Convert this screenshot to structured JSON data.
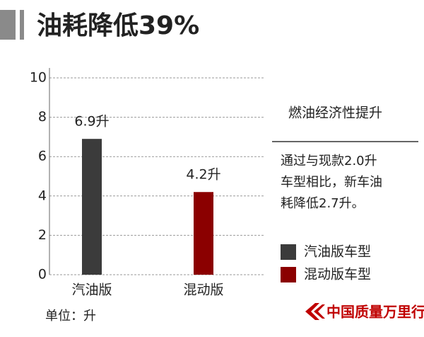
{
  "chart_data": {
    "type": "bar",
    "title": "油耗降低39%",
    "categories": [
      "汽油版",
      "混动版"
    ],
    "values": [
      6.9,
      4.2
    ],
    "value_labels": [
      "6.9升",
      "4.2升"
    ],
    "colors": [
      "#3b3b3b",
      "#8b0000"
    ],
    "legend": [
      "汽油版车型",
      "混动版车型"
    ],
    "ylim": [
      0,
      10
    ],
    "yticks": [
      0,
      2,
      4,
      6,
      8,
      10
    ],
    "grid": true,
    "unit_label": "单位：升",
    "side_title": "燃油经济性提升",
    "side_text": [
      "通过与现款2.0升",
      "车型相比，新车油",
      "耗降低2.7升。"
    ],
    "watermark": "中国质量万里行"
  }
}
